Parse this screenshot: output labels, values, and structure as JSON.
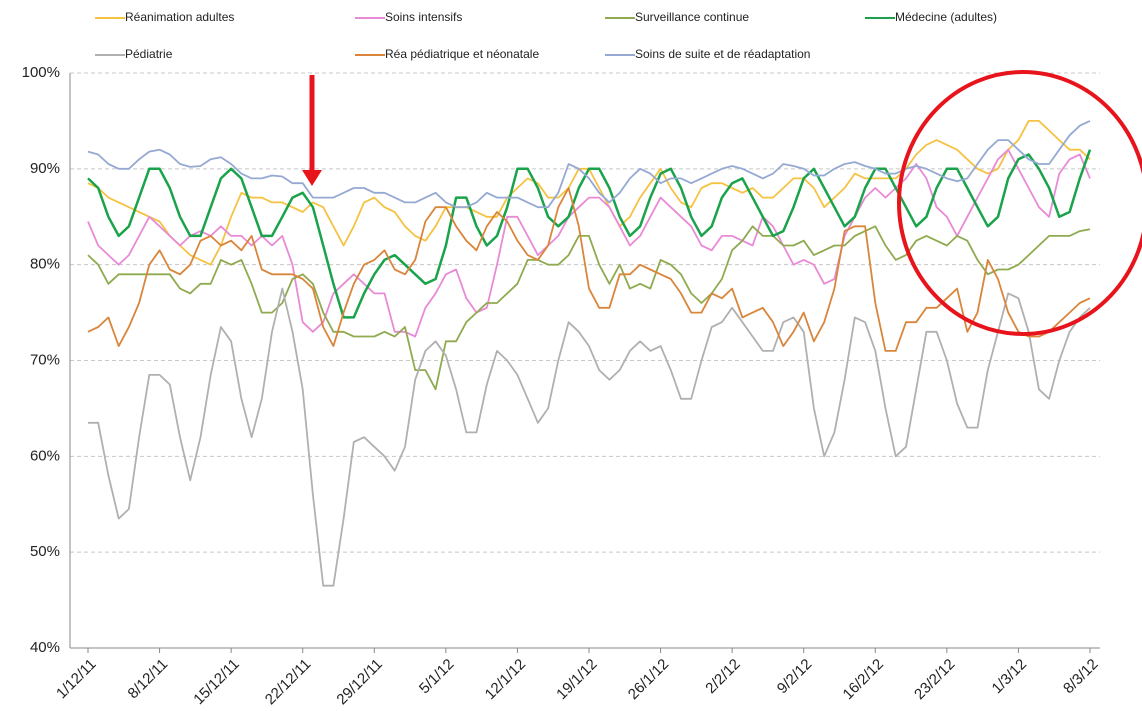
{
  "chart_data": {
    "type": "line",
    "categories": [
      "1/12/11",
      null,
      null,
      null,
      null,
      null,
      null,
      "8/12/11",
      null,
      null,
      null,
      null,
      null,
      null,
      "15/12/11",
      null,
      null,
      null,
      null,
      null,
      null,
      "22/12/11",
      null,
      null,
      null,
      null,
      null,
      null,
      "29/12/11",
      null,
      null,
      null,
      null,
      null,
      null,
      "5/1/12",
      null,
      null,
      null,
      null,
      null,
      null,
      "12/1/12",
      null,
      null,
      null,
      null,
      null,
      null,
      "19/1/12",
      null,
      null,
      null,
      null,
      null,
      null,
      "26/1/12",
      null,
      null,
      null,
      null,
      null,
      null,
      "2/2/12",
      null,
      null,
      null,
      null,
      null,
      null,
      "9/2/12",
      null,
      null,
      null,
      null,
      null,
      null,
      "16/2/12",
      null,
      null,
      null,
      null,
      null,
      null,
      "23/2/12",
      null,
      null,
      null,
      null,
      null,
      null,
      "1/3/12",
      null,
      null,
      null,
      null,
      null,
      null,
      "8/3/12"
    ],
    "ylim": [
      40,
      100
    ],
    "yticks": [
      {
        "value": 40,
        "label": "40%"
      },
      {
        "value": 50,
        "label": "50%"
      },
      {
        "value": 60,
        "label": "60%"
      },
      {
        "value": 70,
        "label": "70%"
      },
      {
        "value": 80,
        "label": "80%"
      },
      {
        "value": 90,
        "label": "90%"
      },
      {
        "value": 100,
        "label": "100%"
      }
    ],
    "grid": true,
    "series": [
      {
        "name": "Réanimation  adultes",
        "color": "#f5c242",
        "values": [
          88.5,
          88,
          87,
          86.5,
          86,
          85.5,
          85,
          84.5,
          83,
          82,
          81,
          80.5,
          80,
          82,
          85,
          87.5,
          87,
          87,
          86.5,
          86.5,
          86,
          85.5,
          86.5,
          86,
          84,
          82,
          84,
          86.5,
          87,
          86,
          85.5,
          84,
          83,
          82.5,
          84,
          86,
          86,
          86,
          85.5,
          85,
          85,
          87,
          88,
          89,
          88.5,
          87,
          87,
          88,
          90,
          90,
          88,
          86,
          84,
          85,
          87,
          88.5,
          90,
          88,
          86.5,
          86,
          88,
          88.5,
          88.5,
          88,
          87.5,
          88,
          87,
          87,
          88,
          89,
          89,
          88,
          86,
          87,
          88,
          89.5,
          89,
          89,
          89,
          89,
          90,
          91.5,
          92.5,
          93,
          92.5,
          92,
          91,
          90,
          89.5,
          90,
          92,
          93,
          95,
          95,
          94,
          93,
          92,
          92,
          91
        ]
      },
      {
        "name": "Soins intensifs",
        "color": "#e98ad6",
        "values": [
          84.5,
          82,
          81,
          80,
          81,
          83,
          85,
          84,
          83,
          82,
          83,
          83.5,
          83,
          84,
          83,
          83,
          82,
          83,
          82,
          83,
          80,
          74,
          73,
          74,
          77,
          78,
          79,
          78,
          77,
          77,
          73,
          73,
          72.5,
          75.5,
          77,
          79,
          79.5,
          76.5,
          75,
          75.5,
          80,
          85,
          85,
          83,
          81,
          82,
          83,
          85,
          86,
          87,
          87,
          86,
          84,
          82,
          83,
          85,
          87,
          86,
          85,
          84,
          82,
          81.5,
          83,
          83,
          82.5,
          82,
          85,
          84,
          82,
          80,
          80.5,
          80,
          78,
          78.5,
          83,
          85,
          87,
          88,
          87,
          88,
          89,
          90.5,
          89,
          86,
          85,
          83,
          85,
          87,
          89,
          91,
          92,
          90,
          88,
          86,
          85,
          89.5,
          91,
          91.5,
          89
        ]
      },
      {
        "name": "Surveillance continue",
        "color": "#8faa4f",
        "values": [
          81,
          80,
          78,
          79,
          79,
          79,
          79,
          79,
          79,
          77.5,
          77,
          78,
          78,
          80.5,
          80,
          80.5,
          78,
          75,
          75,
          76,
          78.5,
          79,
          78,
          75,
          73,
          73,
          72.5,
          72.5,
          72.5,
          73,
          72.5,
          73.5,
          69,
          69,
          67,
          72,
          72,
          74,
          75,
          76,
          76,
          77,
          78,
          80.5,
          80.5,
          80,
          80,
          81,
          83,
          83,
          80,
          78,
          80,
          77.5,
          78,
          77.5,
          80.5,
          80,
          79,
          77,
          76,
          77,
          78.5,
          81.5,
          82.5,
          84,
          83,
          83,
          82,
          82,
          82.5,
          81,
          81.5,
          82,
          82,
          83,
          83.5,
          84,
          82,
          80.5,
          81,
          82.5,
          83,
          82.5,
          82,
          83,
          82.5,
          80.5,
          79,
          79.5,
          79.5,
          80,
          81,
          82,
          83,
          83,
          83,
          83.5,
          83.7
        ]
      },
      {
        "name": "Médecine (adultes)",
        "color": "#1aa34a",
        "values": [
          89,
          88,
          85,
          83,
          84,
          87,
          90,
          90,
          88,
          85,
          83,
          83,
          86,
          89,
          90,
          89,
          86,
          83,
          83,
          85,
          87,
          87.5,
          86,
          82,
          78,
          74.5,
          74.5,
          77,
          79,
          80.5,
          81,
          80,
          79,
          78,
          78.5,
          82,
          87,
          87,
          84,
          82,
          83,
          86,
          90,
          90,
          88,
          85,
          84,
          85,
          88,
          90,
          90,
          88,
          85,
          83,
          84,
          87,
          89.5,
          90,
          88,
          85,
          83,
          84,
          87,
          88.5,
          89,
          87,
          85,
          83,
          83.5,
          86,
          89,
          90,
          88,
          86,
          84,
          85,
          88,
          90,
          90,
          88,
          86,
          84,
          85,
          88,
          90,
          90,
          88,
          86,
          84,
          85,
          89,
          91,
          91.5,
          90,
          88,
          85,
          85.5,
          89,
          92
        ]
      },
      {
        "name": "Pédiatrie",
        "color": "#b0b0b0",
        "values": [
          63.5,
          63.5,
          58,
          53.5,
          54.5,
          62,
          68.5,
          68.5,
          67.5,
          62,
          57.5,
          62,
          68.5,
          73.5,
          72,
          66,
          62,
          66,
          73,
          77.5,
          73,
          67,
          56,
          46.5,
          46.5,
          53.5,
          61.5,
          62,
          61,
          60,
          58.5,
          61,
          68,
          71,
          72,
          70.5,
          67,
          62.5,
          62.5,
          67.5,
          71,
          70,
          68.5,
          66,
          63.5,
          65,
          70,
          74,
          73,
          71.5,
          69,
          68,
          69,
          71,
          72,
          71,
          71.5,
          69,
          66,
          66,
          70,
          73.5,
          74,
          75.5,
          74,
          72.5,
          71,
          71,
          74,
          74.5,
          73,
          65,
          60,
          62.5,
          68,
          74.5,
          74,
          71,
          65,
          60,
          61,
          67,
          73,
          73,
          70,
          65.5,
          63,
          63,
          69,
          73,
          77,
          76.5,
          73,
          67,
          66,
          70,
          73,
          74.5,
          75.5
        ]
      },
      {
        "name": "Réa pédiatrique et néonatale",
        "color": "#d9853b",
        "values": [
          73,
          73.5,
          74.5,
          71.5,
          73.5,
          76,
          80,
          81.5,
          79.5,
          79,
          80,
          82.5,
          83,
          82,
          82.5,
          81.5,
          83,
          79.5,
          79,
          79,
          79,
          78.5,
          77.5,
          73.5,
          71.5,
          75,
          78,
          80,
          80.5,
          81.5,
          79.5,
          79,
          80.5,
          84.5,
          86,
          86,
          84,
          82.5,
          81.5,
          84,
          85.5,
          84.5,
          82.5,
          81,
          80.5,
          82,
          86,
          88,
          84,
          77.5,
          75.5,
          75.5,
          79,
          79,
          80,
          79.5,
          79,
          78.5,
          77,
          75,
          75,
          77,
          76.5,
          77.5,
          74.5,
          75,
          75.5,
          74,
          71.5,
          73,
          75,
          72,
          74,
          77.5,
          83.5,
          84,
          84,
          76,
          71,
          71,
          74,
          74,
          75.5,
          75.5,
          76.5,
          77.5,
          73,
          75,
          80.5,
          78.5,
          75,
          73,
          72.5,
          72.5,
          73,
          74,
          75,
          76,
          76.5
        ]
      },
      {
        "name": "Soins de suite et de réadaptation",
        "color": "#95a9d3",
        "values": [
          91.8,
          91.5,
          90.5,
          90,
          90,
          91,
          91.8,
          92,
          91.5,
          90.5,
          90.2,
          90.3,
          91,
          91.2,
          90.5,
          89.5,
          89,
          89,
          89.3,
          89.2,
          88.5,
          88.5,
          87,
          87,
          87,
          87.5,
          88,
          88,
          87.5,
          87.5,
          87,
          86.5,
          86.5,
          87,
          87.5,
          86.5,
          86,
          86,
          86.5,
          87.5,
          87,
          87,
          87,
          86.5,
          86,
          86,
          87.5,
          90.5,
          90,
          89,
          87.5,
          86.5,
          87.5,
          89,
          90,
          89.5,
          88.5,
          89,
          89,
          88.5,
          89,
          89.5,
          90,
          90.3,
          90,
          89.5,
          89,
          89.5,
          90.5,
          90.3,
          90,
          89.3,
          89.3,
          90,
          90.5,
          90.7,
          90.3,
          90,
          89.5,
          89.5,
          90,
          90.3,
          90,
          89.5,
          89,
          88.7,
          89,
          90.5,
          92,
          93,
          93,
          92,
          91,
          90.5,
          90.5,
          92,
          93.5,
          94.5,
          95
        ]
      }
    ],
    "legend": [
      [
        0,
        1,
        2,
        3
      ],
      [
        4,
        5,
        6
      ]
    ]
  }
}
